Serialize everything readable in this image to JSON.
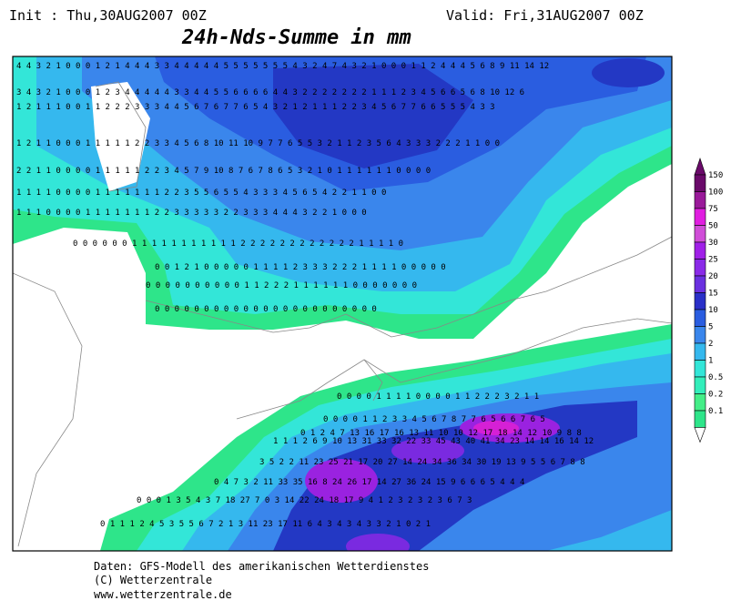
{
  "header": {
    "init": "Init : Thu,30AUG2007 00Z",
    "valid": "Valid: Fri,31AUG2007 00Z",
    "title": "24h-Nds-Summe in mm"
  },
  "legend": {
    "labels": [
      150,
      100,
      75,
      50,
      30,
      25,
      20,
      15,
      10,
      5,
      2,
      1,
      0.5,
      0.2,
      0.1
    ]
  },
  "map": {
    "rows": [
      "4 4 3 2 1 0 0 0 1 2 1 4 4 4 3 3 4 4 4 4 4 5 5 5 5 5 5 5 4 3 2 4 7 4 3 2 1 0 0 0 1 1 2 4 4 4 5 6 8 9 11 14 12",
      "3 4 3 2 1 0 0 0 1 2 3 4 4 4 4 4 3 3 4 4 5 5 6 6 6 6 4 4 3 2 2 2 2 2 2 2 1 1 1 2 3 4 5 6 6 5 6 8 10 12 6",
      "1 2 1 1 1 0 0 1 1 2 2 2 3 3 3 4 4 5 6 7 6 7 7 6 5 4 3 2 1 2 1 1 1 2 2 3 4 5 6 7 7 6 6 5 5 5 4 3 3",
      "1 2 1 1 0 0 0 1 1 1 1 1 2 2 3 3 4 5 6 8 10 11 10 9 7 7 6 5 5 3 2 1 1 2 3 5 6 4 3 3 3 2 2 2 1 1 0 0",
      "2 2 1 1 0 0 0 0 1 1 1 1 1 2 2 3 4 5 7 9 10 8 7 6 7 8 6 5 3 2 1 0 1 1 1 1 1 1 0 0 0 0",
      "1 1 1 1 0 0 0 0 1 1 1 1 1 1 1 2 2 3 5 5 6 5 5 4 3 3 3 4 5 6 5 4 2 2 1 1 0 0",
      "1 1 1 0 0 0 0 1 1 1 1 1 1 1 2 2 3 3 3 3 3 2 2 3 3 3 4 4 4 3 2 2 1 0 0 0",
      "0 0 0 0 0 0 1 1 1 1 1 1 1 1 1 1 1 2 2 2 2 2 2 2 2 2 2 2 2 1 1 1 1 0",
      "0 0 1 2 1 0 0 0 0 0 1 1 1 1 2 3 3 3 2 2 2 1 1 1 1 0 0 0 0 0",
      "0 0 0 0 0 0 0 0 0 0 1 1 2 2 2 1 1 1 1 1 1 0 0 0 0 0 0 0",
      "0 0 0 0 0 0 0 0 0 0 0 0 0 0 0 0 0 0 0 0 0 0 0",
      "0 0 0 0 1 1 1 1 0 0 0 0 1 1 2 2 2 3 2 1 1",
      "0 0 0 0 1 1 2 3 3 4 5 6 7 8 7 7 6 5 6 6 7 6 5",
      "0 1 2 4 7 13 16 17 16 13 11 10 10 12 17 18 14 12 10 9 8 8",
      "1 1 1 2 6 9 10 13 31 33 32 22 33 45 43 40 41 34 23 14 14 16 14 12",
      "3 5 2 2 11 23 25 21 17 20 27 14 24 34 36 34 30 19 13 9 5 5 6 7 8 8",
      "0 4 7 3 2 11 33 35 16 8 24 26 17 14 27 36 24 15 9 6 6 6 5 4 4 4",
      "0 0 0 1 3 5 4 3 7 18 27 7 0 3 14 22 24 18 17 9 4 1 2 3 2 3 2 3 6 7 3",
      "0 1 1 1 2 4 5 3 5 5 6 7 2 1 3 11 23 17 11 6 4 3 4 3 4 3 3 2 1 0 2 1"
    ]
  },
  "footer": {
    "line1": "Daten: GFS-Modell des amerikanischen Wetterdienstes",
    "line2": "(C) Wetterzentrale",
    "line3": "www.wetterzentrale.de"
  }
}
